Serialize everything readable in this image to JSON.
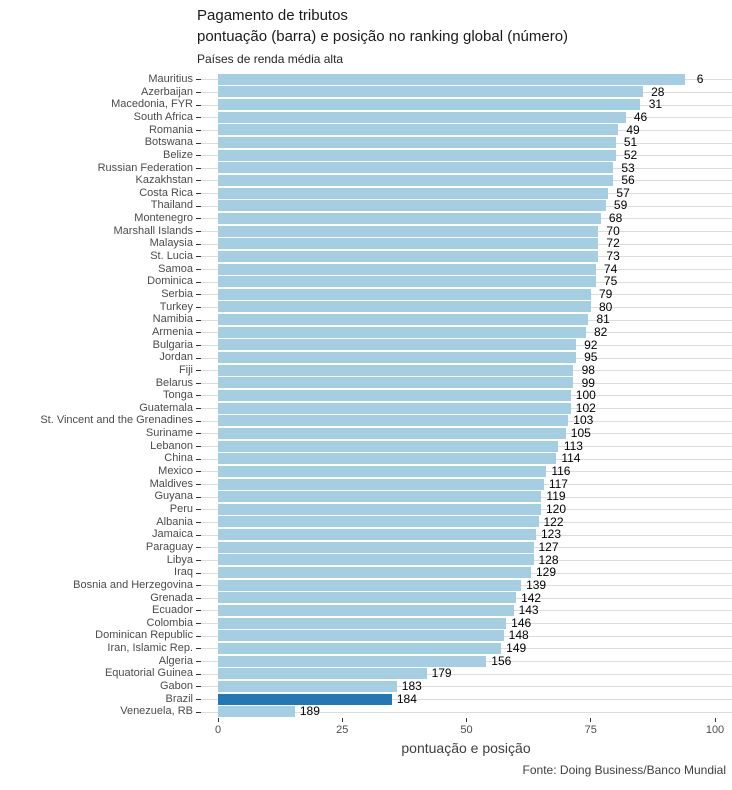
{
  "header": {
    "title_line1": "Pagamento de tributos",
    "title_line2": "pontuação (barra) e posição no ranking global (número)",
    "group_label": "Países de renda média alta"
  },
  "x_axis": {
    "label": "pontuação e posição",
    "ticks": [
      0,
      25,
      50,
      75,
      100
    ]
  },
  "caption": "Fonte: Doing Business/Banco Mundial",
  "colors": {
    "bar": "#A6CEE3",
    "bar_highlight": "#2377B4",
    "gridline": "#DCDCDC",
    "axis_text": "#4D4D4D"
  },
  "chart_data": {
    "type": "bar",
    "orientation": "horizontal",
    "title": "Pagamento de tributos",
    "subtitle": "pontuação (barra) e posição no ranking global (número)",
    "group": "Países de renda média alta",
    "xlabel": "pontuação e posição",
    "source": "Fonte: Doing Business/Banco Mundial",
    "xlim": [
      0,
      100
    ],
    "x_ticks": [
      0,
      25,
      50,
      75,
      100
    ],
    "legend": "none",
    "grid": "row gridlines only",
    "highlight_country": "Brazil",
    "value_meaning": "score (bar length) and global ranking position (number label)",
    "rows": [
      {
        "country": "Mauritius",
        "score": 94,
        "rank": 6
      },
      {
        "country": "Azerbaijan",
        "score": 85.5,
        "rank": 28
      },
      {
        "country": "Macedonia, FYR",
        "score": 85,
        "rank": 31
      },
      {
        "country": "South Africa",
        "score": 82,
        "rank": 46
      },
      {
        "country": "Romania",
        "score": 80.5,
        "rank": 49
      },
      {
        "country": "Botswana",
        "score": 80,
        "rank": 51
      },
      {
        "country": "Belize",
        "score": 80,
        "rank": 52
      },
      {
        "country": "Russian Federation",
        "score": 79.5,
        "rank": 53
      },
      {
        "country": "Kazakhstan",
        "score": 79.5,
        "rank": 56
      },
      {
        "country": "Costa Rica",
        "score": 78.5,
        "rank": 57
      },
      {
        "country": "Thailand",
        "score": 78,
        "rank": 59
      },
      {
        "country": "Montenegro",
        "score": 77,
        "rank": 68
      },
      {
        "country": "Marshall Islands",
        "score": 76.5,
        "rank": 70
      },
      {
        "country": "Malaysia",
        "score": 76.5,
        "rank": 72
      },
      {
        "country": "St. Lucia",
        "score": 76.5,
        "rank": 73
      },
      {
        "country": "Samoa",
        "score": 76,
        "rank": 74
      },
      {
        "country": "Dominica",
        "score": 76,
        "rank": 75
      },
      {
        "country": "Serbia",
        "score": 75,
        "rank": 79
      },
      {
        "country": "Turkey",
        "score": 75,
        "rank": 80
      },
      {
        "country": "Namibia",
        "score": 74.5,
        "rank": 81
      },
      {
        "country": "Armenia",
        "score": 74,
        "rank": 82
      },
      {
        "country": "Bulgaria",
        "score": 72,
        "rank": 92
      },
      {
        "country": "Jordan",
        "score": 72,
        "rank": 95
      },
      {
        "country": "Fiji",
        "score": 71.5,
        "rank": 98
      },
      {
        "country": "Belarus",
        "score": 71.5,
        "rank": 99
      },
      {
        "country": "Tonga",
        "score": 71,
        "rank": 100
      },
      {
        "country": "Guatemala",
        "score": 71,
        "rank": 102
      },
      {
        "country": "St. Vincent and the Grenadines",
        "score": 70.5,
        "rank": 103
      },
      {
        "country": "Suriname",
        "score": 70,
        "rank": 105
      },
      {
        "country": "Lebanon",
        "score": 68.5,
        "rank": 113
      },
      {
        "country": "China",
        "score": 68,
        "rank": 114
      },
      {
        "country": "Mexico",
        "score": 66,
        "rank": 116
      },
      {
        "country": "Maldives",
        "score": 65.5,
        "rank": 117
      },
      {
        "country": "Guyana",
        "score": 65,
        "rank": 119
      },
      {
        "country": "Peru",
        "score": 65,
        "rank": 120
      },
      {
        "country": "Albania",
        "score": 64.5,
        "rank": 122
      },
      {
        "country": "Jamaica",
        "score": 64,
        "rank": 123
      },
      {
        "country": "Paraguay",
        "score": 63.5,
        "rank": 127
      },
      {
        "country": "Libya",
        "score": 63.5,
        "rank": 128
      },
      {
        "country": "Iraq",
        "score": 63,
        "rank": 129
      },
      {
        "country": "Bosnia and Herzegovina",
        "score": 61,
        "rank": 139
      },
      {
        "country": "Grenada",
        "score": 60,
        "rank": 142
      },
      {
        "country": "Ecuador",
        "score": 59.5,
        "rank": 143
      },
      {
        "country": "Colombia",
        "score": 58,
        "rank": 146
      },
      {
        "country": "Dominican Republic",
        "score": 57.5,
        "rank": 148
      },
      {
        "country": "Iran, Islamic Rep.",
        "score": 57,
        "rank": 149
      },
      {
        "country": "Algeria",
        "score": 54,
        "rank": 156
      },
      {
        "country": "Equatorial Guinea",
        "score": 42,
        "rank": 179
      },
      {
        "country": "Gabon",
        "score": 36,
        "rank": 183
      },
      {
        "country": "Brazil",
        "score": 35,
        "rank": 184
      },
      {
        "country": "Venezuela, RB",
        "score": 15.5,
        "rank": 189
      }
    ]
  }
}
